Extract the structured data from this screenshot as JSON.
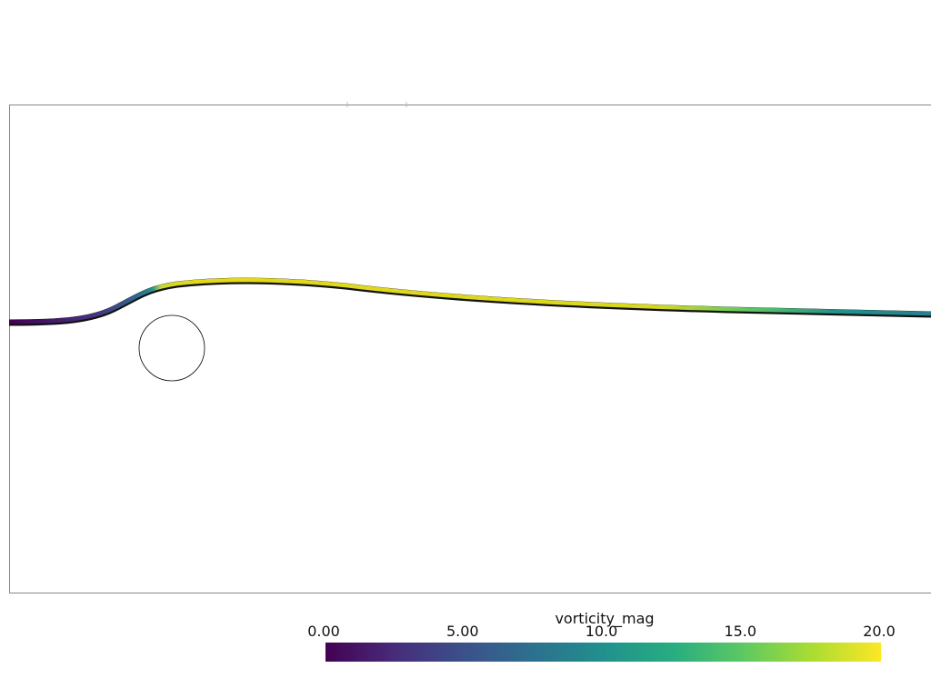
{
  "colorbar": {
    "title": "vorticity_mag",
    "range": [
      0,
      20
    ],
    "ticks": [
      {
        "value": 0,
        "label": "0.00"
      },
      {
        "value": 5,
        "label": "5.00"
      },
      {
        "value": 10,
        "label": "10.0"
      },
      {
        "value": 15,
        "label": "15.0"
      },
      {
        "value": 20,
        "label": "20.0"
      }
    ]
  }
}
